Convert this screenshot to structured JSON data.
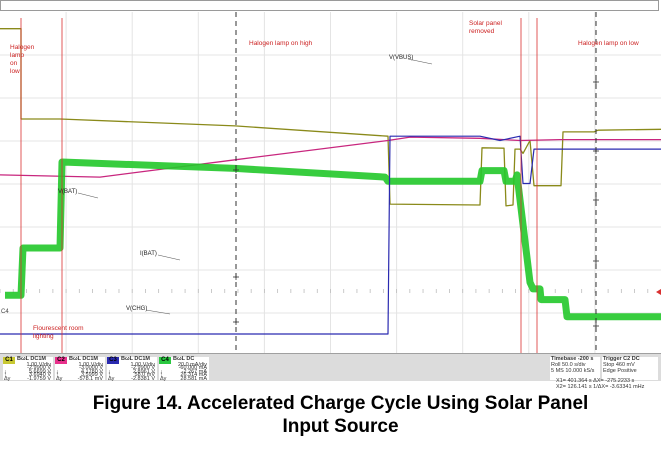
{
  "chart_data": {
    "type": "line",
    "title": "",
    "xlabel": "",
    "ylabel": "",
    "grid": true,
    "annotations": [
      {
        "text_lines": [
          "Halogen",
          "lamp",
          "on",
          "low"
        ],
        "color": "#cc2222"
      },
      {
        "text_lines": [
          "Halogen lamp on high"
        ],
        "color": "#cc2222"
      },
      {
        "text_lines": [
          "Solar panel",
          "removed"
        ],
        "color": "#cc2222"
      },
      {
        "text_lines": [
          "Halogen lamp on low"
        ],
        "color": "#cc2222"
      },
      {
        "text_lines": [
          "Flourescent room",
          "lighting"
        ],
        "color": "#cc2222"
      }
    ],
    "series": [
      {
        "name": "V(VBUS)",
        "channel": "C1",
        "color": "#8a8a1a",
        "trace_width": 1.3,
        "t": [
          0,
          21,
          21,
          60,
          235,
          388,
          390,
          480,
          482,
          504,
          506,
          513,
          515,
          520,
          523,
          530,
          534,
          561,
          563,
          594,
          598,
          661
        ],
        "v": [
          3.1,
          3.1,
          1.0,
          1.0,
          0.84,
          0.6,
          -0.98,
          -1.0,
          0.33,
          0.32,
          -1.02,
          -1.0,
          0.3,
          0.3,
          0.2,
          0.5,
          -0.55,
          -0.55,
          0.7,
          0.7,
          0.74,
          0.76
        ]
      },
      {
        "name": "V(BAT)",
        "channel": "C2",
        "color": "#c8267e",
        "trace_width": 1.3,
        "t": [
          0,
          100,
          235,
          388,
          410,
          480,
          520,
          560,
          661
        ],
        "v": [
          -0.3,
          -0.35,
          0.05,
          0.5,
          0.58,
          0.55,
          0.5,
          0.52,
          0.52
        ]
      },
      {
        "name": "I(BAT)",
        "channel": "C4",
        "color": "#22c82a",
        "trace_width": 7,
        "t": [
          5,
          21,
          23,
          60,
          62,
          235,
          385,
          388,
          480,
          482,
          504,
          506,
          515,
          517,
          530,
          533,
          540,
          541,
          565,
          567,
          661
        ],
        "v": [
          -3.1,
          -3.1,
          -2.0,
          -2.0,
          0.0,
          -0.15,
          -0.35,
          -0.45,
          -0.45,
          -0.2,
          -0.2,
          -0.45,
          -0.45,
          -0.3,
          -2.8,
          -2.95,
          -2.95,
          -3.2,
          -3.2,
          -3.6,
          -3.6
        ]
      },
      {
        "name": "V(CHG)",
        "channel": "C3",
        "color": "#2a2ab0",
        "trace_width": 1.2,
        "t": [
          0,
          388,
          390,
          480,
          500,
          520,
          523,
          530,
          534,
          661
        ],
        "v": [
          -4.0,
          -4.0,
          0.6,
          0.6,
          0.5,
          0.6,
          -0.5,
          -0.5,
          0.3,
          0.3
        ]
      }
    ],
    "series_labels": [
      "V(VBUS)",
      "V(BAT)",
      "I(BAT)",
      "V(CHG)"
    ],
    "channel_markers": [
      "C4"
    ],
    "channels": [
      {
        "id": "C1",
        "color": "#c8c832",
        "header": "BωL DC1M",
        "lines": [
          "1.00 V/div",
          "-2.9900 V",
          "5.6699 V",
          "3.6940 V",
          "-1.9759 V"
        ],
        "symbols": [
          "",
          "",
          "↓",
          "↑",
          "Δy"
        ]
      },
      {
        "id": "C2",
        "color": "#e8308c",
        "header": "BωL DC1M",
        "lines": [
          "1.00 V/div",
          "-3.0000 V",
          "4.1780 V",
          "3.5999 V",
          "-578.1 mV"
        ],
        "symbols": [
          "",
          "",
          "↓",
          "↑",
          "Δy"
        ]
      },
      {
        "id": "C3",
        "color": "#2a2ab0",
        "header": "BωL DC1M",
        "lines": [
          "1.00 V/div",
          "-2.9900 V",
          "2.8961 V",
          "58.0 mV",
          "-2.8381 V"
        ],
        "symbols": [
          "",
          "",
          "↓",
          "↑",
          "Δy"
        ]
      },
      {
        "id": "C4",
        "color": "#2ac840",
        "header": "BωL DC",
        "lines": [
          "20.0 mA/div",
          "-60.000 mA",
          "-2.267 mA",
          "26.314 mA",
          "28.581 mA"
        ],
        "symbols": [
          "",
          "",
          "↓",
          "↑",
          "Δy"
        ]
      }
    ],
    "timebase": {
      "label": "Timebase",
      "value": "-200 s",
      "rows": [
        [
          "Roll",
          "50.0 s/div"
        ],
        [
          "5 MS",
          "10.000 kS/s"
        ]
      ]
    },
    "trigger": {
      "label": "Trigger",
      "value": "C2 DC",
      "rows": [
        [
          "Stop",
          "460 mV"
        ],
        [
          "Edge",
          "Positive"
        ]
      ]
    },
    "measurements": [
      "X1= 401.364 s   ΔX= -275.2233 s",
      "X2= 126.141 s  1/ΔX= -3.63341 mHz"
    ]
  },
  "caption": {
    "line1": "Figure 14. Accelerated Charge Cycle Using Solar Panel",
    "line2": "Input Source"
  }
}
